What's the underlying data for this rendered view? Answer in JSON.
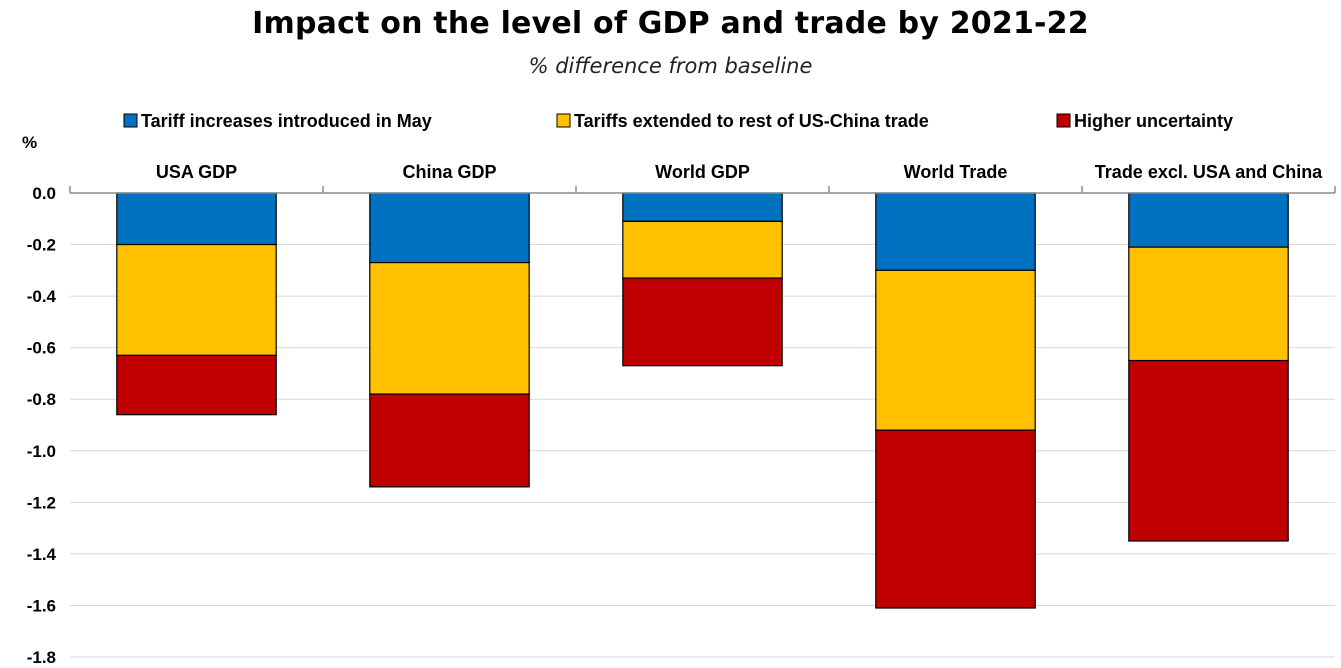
{
  "chart_data": {
    "type": "bar",
    "stacked": true,
    "title": "Impact on the level of GDP and trade by 2021-22",
    "subtitle": "% difference from baseline",
    "ylabel": "%",
    "ylim": [
      -1.8,
      0.0
    ],
    "yticks": [
      "0.0",
      "-0.2",
      "-0.4",
      "-0.6",
      "-0.8",
      "-1.0",
      "-1.2",
      "-1.4",
      "-1.6",
      "-1.8"
    ],
    "ytick_values": [
      0.0,
      -0.2,
      -0.4,
      -0.6,
      -0.8,
      -1.0,
      -1.2,
      -1.4,
      -1.6,
      -1.8
    ],
    "grid": true,
    "legend_position": "top",
    "categories": [
      "USA GDP",
      "China GDP",
      "World GDP",
      "World Trade",
      "Trade excl. USA and China"
    ],
    "series": [
      {
        "name": "Tariff increases introduced in May",
        "color": "#0070c0",
        "values": [
          -0.2,
          -0.27,
          -0.11,
          -0.3,
          -0.21
        ]
      },
      {
        "name": "Tariffs extended to rest of US-China trade",
        "color": "#ffc000",
        "values": [
          -0.43,
          -0.51,
          -0.22,
          -0.62,
          -0.44
        ]
      },
      {
        "name": "Higher uncertainty",
        "color": "#c00000",
        "values": [
          -0.23,
          -0.36,
          -0.34,
          -0.69,
          -0.7
        ]
      }
    ]
  }
}
